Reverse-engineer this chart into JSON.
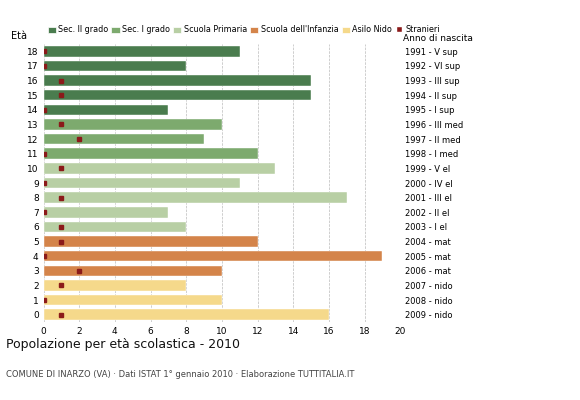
{
  "ages": [
    18,
    17,
    16,
    15,
    14,
    13,
    12,
    11,
    10,
    9,
    8,
    7,
    6,
    5,
    4,
    3,
    2,
    1,
    0
  ],
  "anno_nascita": [
    "1991 - V sup",
    "1992 - VI sup",
    "1993 - III sup",
    "1994 - II sup",
    "1995 - I sup",
    "1996 - III med",
    "1997 - II med",
    "1998 - I med",
    "1999 - V el",
    "2000 - IV el",
    "2001 - III el",
    "2002 - II el",
    "2003 - I el",
    "2004 - mat",
    "2005 - mat",
    "2006 - mat",
    "2007 - nido",
    "2008 - nido",
    "2009 - nido"
  ],
  "bar_values": [
    11,
    8,
    15,
    15,
    7,
    10,
    9,
    12,
    13,
    11,
    17,
    7,
    8,
    12,
    19,
    10,
    8,
    10,
    16
  ],
  "stranieri_x": [
    0,
    0,
    1,
    1,
    0,
    1,
    2,
    0,
    1,
    0,
    1,
    0,
    1,
    1,
    0,
    2,
    1,
    0,
    1
  ],
  "school_types": {
    "sec2": [
      14,
      15,
      16,
      17,
      18
    ],
    "sec1": [
      11,
      12,
      13
    ],
    "primaria": [
      6,
      7,
      8,
      9,
      10
    ],
    "infanzia": [
      3,
      4,
      5
    ],
    "nido": [
      0,
      1,
      2
    ]
  },
  "colors": {
    "sec2": "#4a7c4e",
    "sec1": "#7daa6e",
    "primaria": "#b8cfa4",
    "infanzia": "#d4844a",
    "nido": "#f5d98b"
  },
  "legend_labels": [
    "Sec. II grado",
    "Sec. I grado",
    "Scuola Primaria",
    "Scuola dell'Infanzia",
    "Asilo Nido",
    "Stranieri"
  ],
  "stranieri_color": "#8b1a1a",
  "title": "Popolazione per età scolastica - 2010",
  "subtitle": "COMUNE DI INARZO (VA) · Dati ISTAT 1° gennaio 2010 · Elaborazione TUTTITALIA.IT",
  "xlim": [
    0,
    20
  ],
  "xticks": [
    0,
    2,
    4,
    6,
    8,
    10,
    12,
    14,
    16,
    18,
    20
  ],
  "background_color": "#ffffff",
  "grid_color": "#bbbbbb"
}
